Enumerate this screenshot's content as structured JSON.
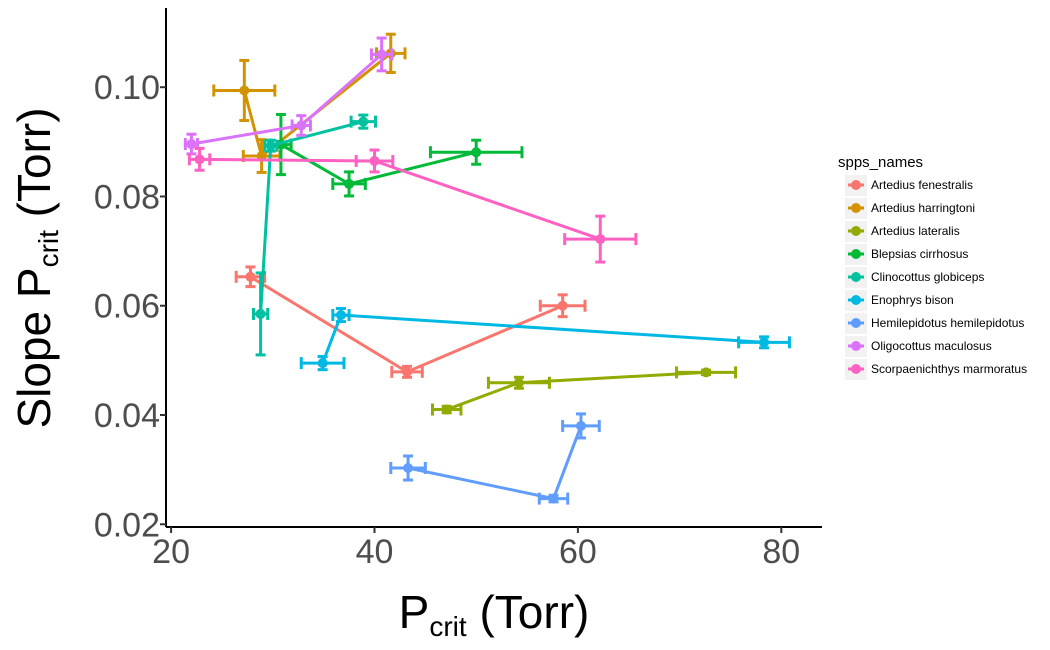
{
  "chart_data": {
    "type": "scatter",
    "xlabel": {
      "main": "P",
      "sub": "crit",
      "unit": "(Torr)"
    },
    "ylabel": {
      "main": "Slope P",
      "sub": "crit",
      "unit": "(Torr)"
    },
    "xlim": [
      19.5,
      84
    ],
    "ylim": [
      0.0195,
      0.1145
    ],
    "xticks": [
      20,
      40,
      60,
      80
    ],
    "yticks": [
      0.02,
      0.04,
      0.06,
      0.08,
      0.1
    ],
    "ytick_labels": [
      "0.02",
      "0.04",
      "0.06",
      "0.08",
      "0.10"
    ],
    "grid": false,
    "legend": {
      "title": "spps_names",
      "placement": "right"
    },
    "series": [
      {
        "name": "Artedius fenestralis",
        "color": "#F8766D",
        "points": [
          {
            "x": 27.8,
            "y": 0.0653,
            "xerr": 1.4,
            "yerr": 0.0018
          },
          {
            "x": 43.2,
            "y": 0.0479,
            "xerr": 1.5,
            "yerr": 0.001
          },
          {
            "x": 58.5,
            "y": 0.06,
            "xerr": 2.2,
            "yerr": 0.002
          }
        ]
      },
      {
        "name": "Artedius harringtoni",
        "color": "#D39200",
        "points": [
          {
            "x": 27.2,
            "y": 0.0994,
            "xerr": 3.0,
            "yerr": 0.0055
          },
          {
            "x": 28.9,
            "y": 0.0874,
            "xerr": 1.8,
            "yerr": 0.003
          },
          {
            "x": 41.6,
            "y": 0.1062,
            "xerr": 1.4,
            "yerr": 0.0035
          }
        ]
      },
      {
        "name": "Artedius lateralis",
        "color": "#93AA00",
        "points": [
          {
            "x": 47.1,
            "y": 0.041,
            "xerr": 1.4,
            "yerr": 0.0006
          },
          {
            "x": 54.2,
            "y": 0.0459,
            "xerr": 3.0,
            "yerr": 0.001
          },
          {
            "x": 72.6,
            "y": 0.0478,
            "xerr": 2.9,
            "yerr": 0.0004
          }
        ]
      },
      {
        "name": "Blepsias cirrhosus",
        "color": "#00BA38",
        "points": [
          {
            "x": 30.8,
            "y": 0.0895,
            "xerr": 1.0,
            "yerr": 0.0055
          },
          {
            "x": 37.5,
            "y": 0.0823,
            "xerr": 1.6,
            "yerr": 0.0022
          },
          {
            "x": 50.0,
            "y": 0.0881,
            "xerr": 4.5,
            "yerr": 0.0022
          }
        ]
      },
      {
        "name": "Clinocottus globiceps",
        "color": "#00C19F",
        "points": [
          {
            "x": 28.8,
            "y": 0.0585,
            "xerr": 0.7,
            "yerr": 0.0075
          },
          {
            "x": 29.8,
            "y": 0.0893,
            "xerr": 0.6,
            "yerr": 0.001
          },
          {
            "x": 38.9,
            "y": 0.0937,
            "xerr": 1.2,
            "yerr": 0.0012
          }
        ]
      },
      {
        "name": "Enophrys bison",
        "color": "#00B9E3",
        "points": [
          {
            "x": 34.9,
            "y": 0.0495,
            "xerr": 2.1,
            "yerr": 0.0012
          },
          {
            "x": 36.7,
            "y": 0.0583,
            "xerr": 0.8,
            "yerr": 0.0012
          },
          {
            "x": 78.3,
            "y": 0.0533,
            "xerr": 2.5,
            "yerr": 0.001
          }
        ]
      },
      {
        "name": "Hemilepidotus hemilepidotus",
        "color": "#619CFF",
        "points": [
          {
            "x": 43.3,
            "y": 0.0303,
            "xerr": 1.7,
            "yerr": 0.0022
          },
          {
            "x": 57.6,
            "y": 0.0247,
            "xerr": 1.4,
            "yerr": 0.0006
          },
          {
            "x": 60.3,
            "y": 0.038,
            "xerr": 1.8,
            "yerr": 0.0022
          }
        ]
      },
      {
        "name": "Oligocottus maculosus",
        "color": "#DB72FB",
        "points": [
          {
            "x": 22.0,
            "y": 0.0896,
            "xerr": 0.6,
            "yerr": 0.0018
          },
          {
            "x": 32.8,
            "y": 0.093,
            "xerr": 0.9,
            "yerr": 0.0018
          },
          {
            "x": 40.7,
            "y": 0.106,
            "xerr": 1.0,
            "yerr": 0.003
          }
        ]
      },
      {
        "name": "Scorpaenichthys marmoratus",
        "color": "#FF61C3",
        "points": [
          {
            "x": 22.8,
            "y": 0.0868,
            "xerr": 1.0,
            "yerr": 0.002
          },
          {
            "x": 40.0,
            "y": 0.0865,
            "xerr": 1.8,
            "yerr": 0.002
          },
          {
            "x": 62.2,
            "y": 0.0722,
            "xerr": 3.5,
            "yerr": 0.0042
          }
        ]
      }
    ]
  }
}
